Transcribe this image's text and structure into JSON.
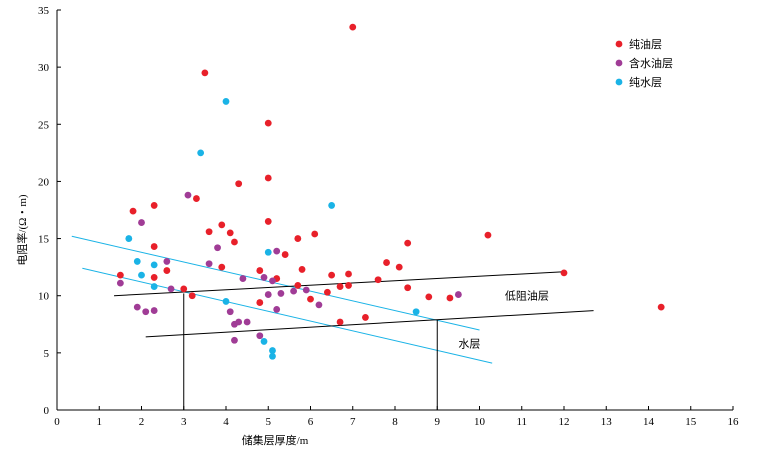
{
  "chart_data": {
    "type": "scatter",
    "xlabel": "储集层厚度/m",
    "ylabel": "电阻率/(Ω・m)",
    "xlim": [
      0,
      16
    ],
    "ylim": [
      0,
      35
    ],
    "xticks": [
      0,
      1,
      2,
      3,
      4,
      5,
      6,
      7,
      8,
      9,
      10,
      11,
      12,
      13,
      14,
      15,
      16
    ],
    "yticks": [
      0,
      5,
      10,
      15,
      20,
      25,
      30,
      35
    ],
    "grid": false,
    "legend_position": "top-right",
    "series": [
      {
        "name": "纯油层",
        "color": "#e8202a",
        "points": [
          [
            1.5,
            11.8
          ],
          [
            1.8,
            17.4
          ],
          [
            2.3,
            17.9
          ],
          [
            2.3,
            14.3
          ],
          [
            2.3,
            11.6
          ],
          [
            2.6,
            12.2
          ],
          [
            3.0,
            10.6
          ],
          [
            3.2,
            10.0
          ],
          [
            3.3,
            18.5
          ],
          [
            3.5,
            29.5
          ],
          [
            3.6,
            15.6
          ],
          [
            3.9,
            16.2
          ],
          [
            3.9,
            12.5
          ],
          [
            4.1,
            15.5
          ],
          [
            4.2,
            14.7
          ],
          [
            4.3,
            19.8
          ],
          [
            4.8,
            12.2
          ],
          [
            4.8,
            9.4
          ],
          [
            5.0,
            25.1
          ],
          [
            5.0,
            20.3
          ],
          [
            5.0,
            16.5
          ],
          [
            5.2,
            11.5
          ],
          [
            5.4,
            13.6
          ],
          [
            5.7,
            15.0
          ],
          [
            5.8,
            12.3
          ],
          [
            5.7,
            10.9
          ],
          [
            6.0,
            9.7
          ],
          [
            6.1,
            15.4
          ],
          [
            6.4,
            10.3
          ],
          [
            6.5,
            11.8
          ],
          [
            6.7,
            10.8
          ],
          [
            6.7,
            7.7
          ],
          [
            6.9,
            11.9
          ],
          [
            6.9,
            10.9
          ],
          [
            7.0,
            33.5
          ],
          [
            7.3,
            8.1
          ],
          [
            7.6,
            11.4
          ],
          [
            7.8,
            12.9
          ],
          [
            8.1,
            12.5
          ],
          [
            8.3,
            14.6
          ],
          [
            8.3,
            10.7
          ],
          [
            8.8,
            9.9
          ],
          [
            9.3,
            9.8
          ],
          [
            10.2,
            15.3
          ],
          [
            12.0,
            12.0
          ],
          [
            14.3,
            9.0
          ]
        ]
      },
      {
        "name": "含水油层",
        "color": "#a03c96",
        "points": [
          [
            1.5,
            11.1
          ],
          [
            2.0,
            16.4
          ],
          [
            1.9,
            9.0
          ],
          [
            2.1,
            8.6
          ],
          [
            2.3,
            8.7
          ],
          [
            2.6,
            13.0
          ],
          [
            2.7,
            10.6
          ],
          [
            3.1,
            18.8
          ],
          [
            3.6,
            12.8
          ],
          [
            3.8,
            14.2
          ],
          [
            4.1,
            8.6
          ],
          [
            4.2,
            7.5
          ],
          [
            4.2,
            6.1
          ],
          [
            4.3,
            7.7
          ],
          [
            4.4,
            11.5
          ],
          [
            4.5,
            7.7
          ],
          [
            4.8,
            6.5
          ],
          [
            4.9,
            11.6
          ],
          [
            5.0,
            10.1
          ],
          [
            5.1,
            11.3
          ],
          [
            5.2,
            13.9
          ],
          [
            5.2,
            8.8
          ],
          [
            5.3,
            10.2
          ],
          [
            5.6,
            10.4
          ],
          [
            5.9,
            10.5
          ],
          [
            6.2,
            9.2
          ],
          [
            9.5,
            10.1
          ]
        ]
      },
      {
        "name": "纯水层",
        "color": "#1ab3e6",
        "points": [
          [
            1.7,
            15.0
          ],
          [
            1.9,
            13.0
          ],
          [
            2.0,
            11.8
          ],
          [
            2.3,
            12.7
          ],
          [
            2.3,
            10.8
          ],
          [
            3.4,
            22.5
          ],
          [
            4.0,
            27.0
          ],
          [
            4.0,
            9.5
          ],
          [
            4.9,
            6.0
          ],
          [
            5.0,
            13.8
          ],
          [
            5.1,
            5.2
          ],
          [
            5.1,
            4.7
          ],
          [
            6.5,
            17.9
          ],
          [
            8.5,
            8.6
          ]
        ]
      }
    ],
    "lines": [
      {
        "role": "water-upper",
        "color": "#1ab3e6",
        "from": [
          0.35,
          15.2
        ],
        "to": [
          10.0,
          7.0
        ]
      },
      {
        "role": "water-lower",
        "color": "#1ab3e6",
        "from": [
          0.6,
          12.4
        ],
        "to": [
          10.3,
          4.1
        ]
      },
      {
        "role": "low-res-oil-upper",
        "color": "#000000",
        "from": [
          1.35,
          10.0
        ],
        "to": [
          12.0,
          12.1
        ]
      },
      {
        "role": "low-res-oil-lower",
        "color": "#000000",
        "from": [
          2.1,
          6.4
        ],
        "to": [
          12.7,
          8.7
        ]
      },
      {
        "role": "cutoff-left",
        "color": "#000000",
        "from": [
          3.0,
          10.2
        ],
        "to": [
          3.0,
          0
        ]
      },
      {
        "role": "cutoff-right",
        "color": "#000000",
        "from": [
          9.0,
          7.9
        ],
        "to": [
          9.0,
          0
        ]
      }
    ],
    "annotations": [
      {
        "text": "低阻油层",
        "x": 10.6,
        "y": 10.0
      },
      {
        "text": "水层",
        "x": 9.5,
        "y": 5.8
      }
    ]
  }
}
